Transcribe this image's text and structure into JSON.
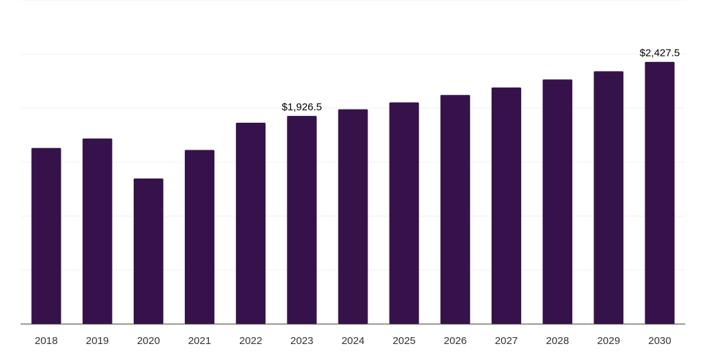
{
  "chart_data": {
    "type": "bar",
    "title": "",
    "xlabel": "",
    "ylabel": "",
    "categories": [
      "2018",
      "2019",
      "2020",
      "2021",
      "2022",
      "2023",
      "2024",
      "2025",
      "2026",
      "2027",
      "2028",
      "2029",
      "2030"
    ],
    "values": [
      1630,
      1718,
      1348,
      1612,
      1864,
      1926.5,
      1988,
      2052,
      2121,
      2190,
      2264,
      2340,
      2427.5
    ],
    "ylim": [
      0,
      3000
    ],
    "grid": true,
    "legend": "none",
    "bar_color": "#36124a",
    "data_labels": [
      {
        "index": 5,
        "text": "$1,926.5"
      },
      {
        "index": 12,
        "text": "$2,427.5"
      }
    ]
  }
}
